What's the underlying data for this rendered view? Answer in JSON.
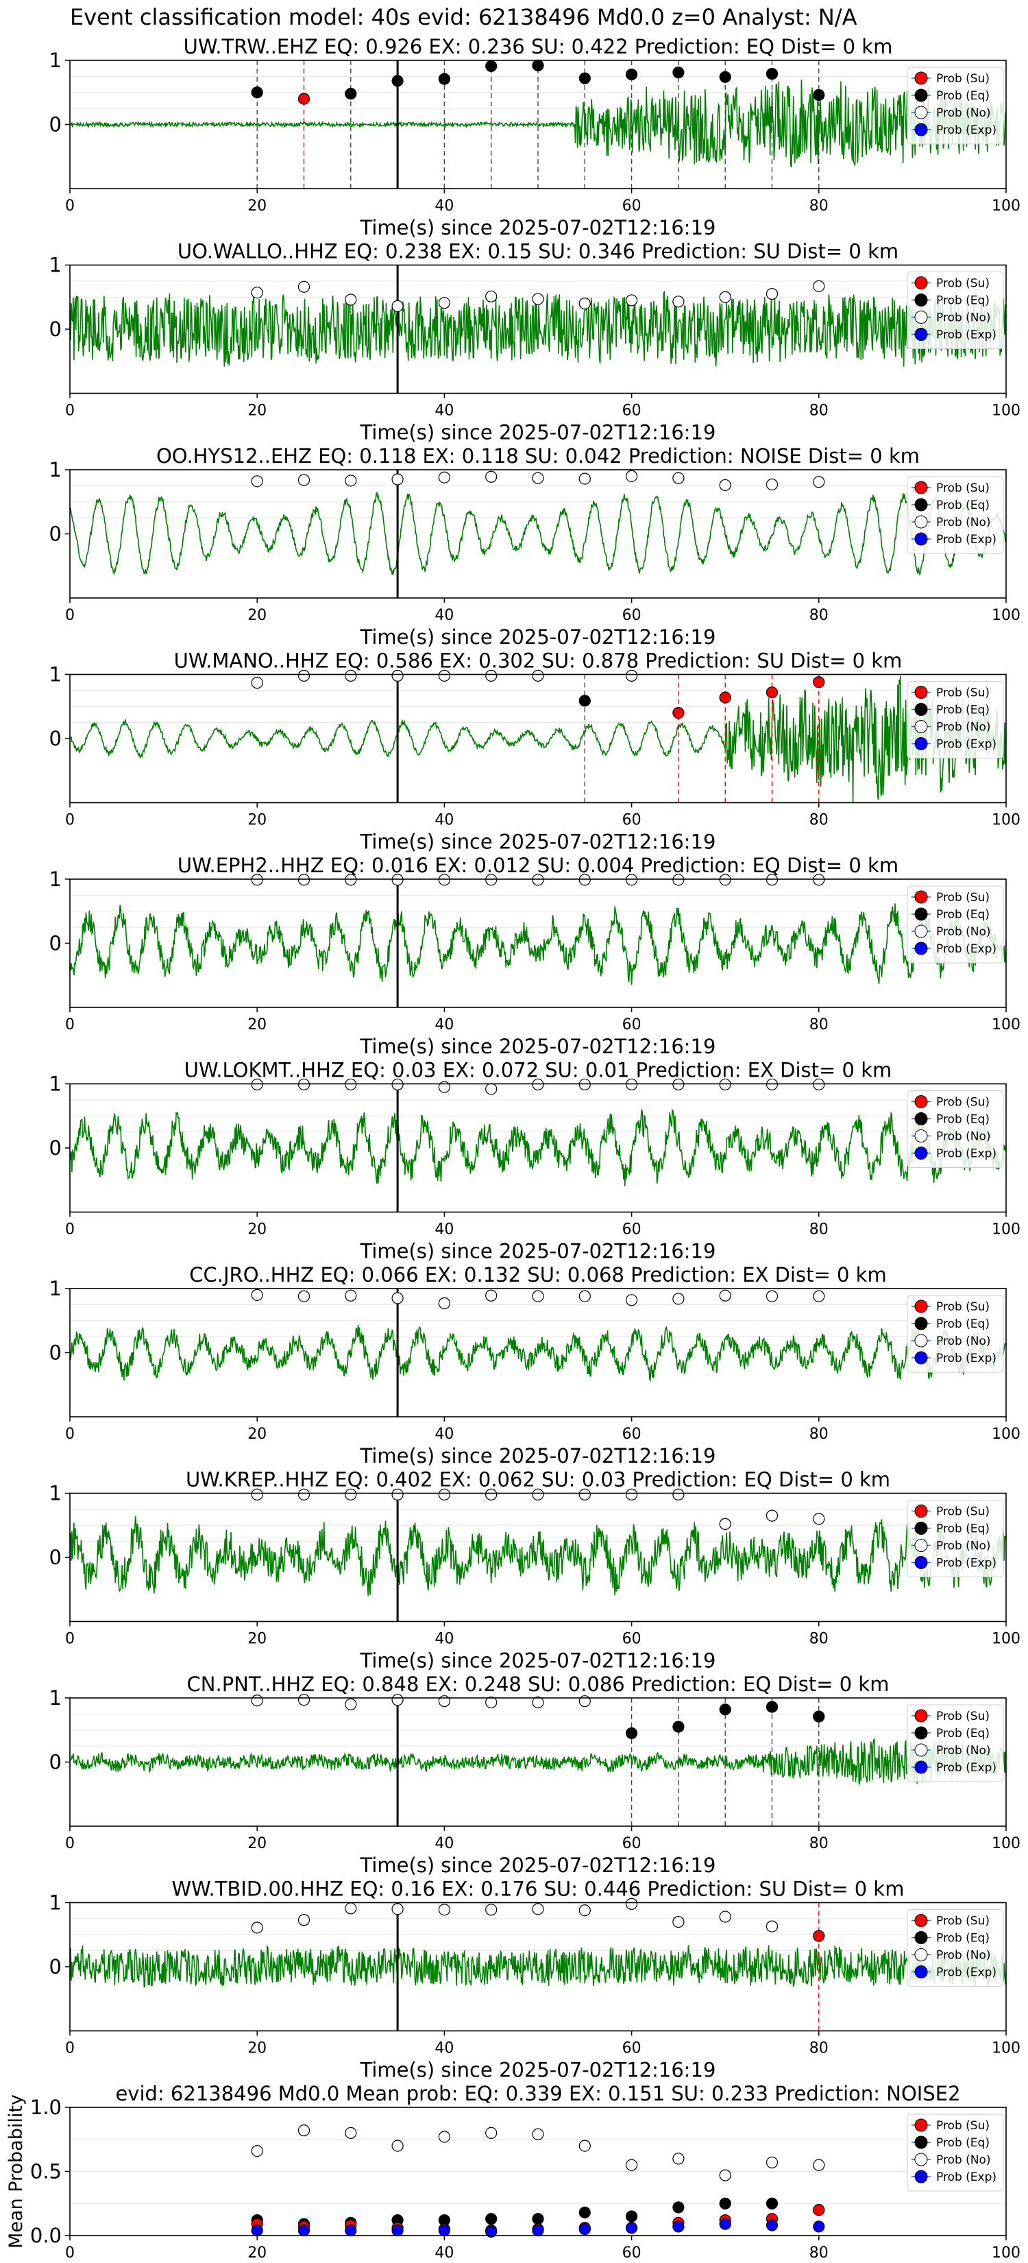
{
  "suptitle": "Event classification model: 40s evid: 62138496 Md0.0 z=0 Analyst: N/A",
  "xlabel": "Time(s) since 2025-07-02T12:16:19",
  "legend": [
    "Prob (Su)",
    "Prob (Eq)",
    "Prob (No)",
    "Prob (Exp)"
  ],
  "colors": {
    "trace": "#008000",
    "su": "#ff0000",
    "eq": "#000000",
    "no": "#ffffff",
    "exp": "#0000ff",
    "pick": "#000000"
  },
  "chart_data": [
    {
      "type": "line",
      "station": "UW.TRW..EHZ",
      "title": "UW.TRW..EHZ   EQ: 0.926  EX: 0.236  SU: 0.422   Prediction: EQ    Dist= 0 km",
      "xlim": [
        0,
        100
      ],
      "ylim": [
        -1,
        1
      ],
      "xticks": [
        0,
        20,
        40,
        60,
        80,
        100
      ],
      "yticks": [
        0,
        1
      ],
      "pick": 35,
      "trace": {
        "amp": 0.03,
        "bursts": [
          [
            54,
            100,
            0.65
          ]
        ],
        "osc": 0
      },
      "markers": [
        {
          "x": 20,
          "y": 0.5,
          "cls": "eq"
        },
        {
          "x": 25,
          "y": 0.4,
          "cls": "su"
        },
        {
          "x": 30,
          "y": 0.48,
          "cls": "eq"
        },
        {
          "x": 35,
          "y": 0.68,
          "cls": "eq"
        },
        {
          "x": 40,
          "y": 0.71,
          "cls": "eq"
        },
        {
          "x": 45,
          "y": 0.91,
          "cls": "eq"
        },
        {
          "x": 50,
          "y": 0.92,
          "cls": "eq"
        },
        {
          "x": 55,
          "y": 0.72,
          "cls": "eq"
        },
        {
          "x": 60,
          "y": 0.78,
          "cls": "eq"
        },
        {
          "x": 65,
          "y": 0.81,
          "cls": "eq"
        },
        {
          "x": 70,
          "y": 0.74,
          "cls": "eq"
        },
        {
          "x": 75,
          "y": 0.79,
          "cls": "eq"
        },
        {
          "x": 80,
          "y": 0.46,
          "cls": "eq"
        }
      ]
    },
    {
      "type": "line",
      "station": "UO.WALLO..HHZ",
      "title": "UO.WALLO..HHZ   EQ: 0.238  EX: 0.15  SU: 0.346   Prediction: SU    Dist= 0 km",
      "xlim": [
        0,
        100
      ],
      "ylim": [
        -1,
        1
      ],
      "xticks": [
        0,
        20,
        40,
        60,
        80,
        100
      ],
      "yticks": [
        0,
        1
      ],
      "pick": 35,
      "trace": {
        "amp": 0.5,
        "bursts": [],
        "osc": 0
      },
      "markers": [
        {
          "x": 20,
          "y": 0.57,
          "cls": "no"
        },
        {
          "x": 25,
          "y": 0.66,
          "cls": "no"
        },
        {
          "x": 30,
          "y": 0.46,
          "cls": "no"
        },
        {
          "x": 35,
          "y": 0.36,
          "cls": "no"
        },
        {
          "x": 40,
          "y": 0.41,
          "cls": "no"
        },
        {
          "x": 45,
          "y": 0.51,
          "cls": "no"
        },
        {
          "x": 50,
          "y": 0.47,
          "cls": "no"
        },
        {
          "x": 55,
          "y": 0.4,
          "cls": "no"
        },
        {
          "x": 60,
          "y": 0.45,
          "cls": "no"
        },
        {
          "x": 65,
          "y": 0.43,
          "cls": "no"
        },
        {
          "x": 70,
          "y": 0.5,
          "cls": "no"
        },
        {
          "x": 75,
          "y": 0.55,
          "cls": "no"
        },
        {
          "x": 80,
          "y": 0.67,
          "cls": "no"
        }
      ]
    },
    {
      "type": "line",
      "station": "OO.HYS12..EHZ",
      "title": "OO.HYS12..EHZ   EQ: 0.118  EX: 0.118  SU: 0.042   Prediction: NOISE    Dist= 0 km",
      "xlim": [
        0,
        100
      ],
      "ylim": [
        -1,
        1
      ],
      "xticks": [
        0,
        20,
        40,
        60,
        80,
        100
      ],
      "yticks": [
        0,
        1
      ],
      "pick": 35,
      "trace": {
        "amp": 0.06,
        "bursts": [],
        "osc": 0.6
      },
      "markers": [
        {
          "x": 20,
          "y": 0.82,
          "cls": "no"
        },
        {
          "x": 25,
          "y": 0.84,
          "cls": "no"
        },
        {
          "x": 30,
          "y": 0.83,
          "cls": "no"
        },
        {
          "x": 35,
          "y": 0.85,
          "cls": "no"
        },
        {
          "x": 40,
          "y": 0.88,
          "cls": "no"
        },
        {
          "x": 45,
          "y": 0.89,
          "cls": "no"
        },
        {
          "x": 50,
          "y": 0.87,
          "cls": "no"
        },
        {
          "x": 55,
          "y": 0.86,
          "cls": "no"
        },
        {
          "x": 60,
          "y": 0.9,
          "cls": "no"
        },
        {
          "x": 65,
          "y": 0.87,
          "cls": "no"
        },
        {
          "x": 70,
          "y": 0.76,
          "cls": "no"
        },
        {
          "x": 75,
          "y": 0.77,
          "cls": "no"
        },
        {
          "x": 80,
          "y": 0.81,
          "cls": "no"
        }
      ]
    },
    {
      "type": "line",
      "station": "UW.MANO..HHZ",
      "title": "UW.MANO..HHZ   EQ: 0.586  EX: 0.302  SU: 0.878   Prediction: SU    Dist= 0 km",
      "xlim": [
        0,
        100
      ],
      "ylim": [
        -1,
        1
      ],
      "xticks": [
        0,
        20,
        40,
        60,
        80,
        100
      ],
      "yticks": [
        0,
        1
      ],
      "pick": 35,
      "trace": {
        "amp": 0.04,
        "bursts": [
          [
            70,
            100,
            0.75
          ]
        ],
        "osc": 0.25
      },
      "markers": [
        {
          "x": 20,
          "y": 0.87,
          "cls": "no"
        },
        {
          "x": 25,
          "y": 0.98,
          "cls": "no"
        },
        {
          "x": 30,
          "y": 0.98,
          "cls": "no"
        },
        {
          "x": 35,
          "y": 0.98,
          "cls": "no"
        },
        {
          "x": 40,
          "y": 0.98,
          "cls": "no"
        },
        {
          "x": 45,
          "y": 0.98,
          "cls": "no"
        },
        {
          "x": 50,
          "y": 0.98,
          "cls": "no"
        },
        {
          "x": 55,
          "y": 0.59,
          "cls": "eq"
        },
        {
          "x": 60,
          "y": 0.98,
          "cls": "no"
        },
        {
          "x": 65,
          "y": 0.4,
          "cls": "su"
        },
        {
          "x": 70,
          "y": 0.64,
          "cls": "su"
        },
        {
          "x": 75,
          "y": 0.72,
          "cls": "su"
        },
        {
          "x": 80,
          "y": 0.88,
          "cls": "su"
        }
      ]
    },
    {
      "type": "line",
      "station": "UW.EPH2..HHZ",
      "title": "UW.EPH2..HHZ   EQ: 0.016  EX: 0.012  SU: 0.004   Prediction: EQ    Dist= 0 km",
      "xlim": [
        0,
        100
      ],
      "ylim": [
        -1,
        1
      ],
      "xticks": [
        0,
        20,
        40,
        60,
        80,
        100
      ],
      "yticks": [
        0,
        1
      ],
      "pick": 35,
      "trace": {
        "amp": 0.18,
        "bursts": [],
        "osc": 0.45
      },
      "markers": [
        {
          "x": 20,
          "y": 0.99,
          "cls": "no"
        },
        {
          "x": 25,
          "y": 0.99,
          "cls": "no"
        },
        {
          "x": 30,
          "y": 0.99,
          "cls": "no"
        },
        {
          "x": 35,
          "y": 0.99,
          "cls": "no"
        },
        {
          "x": 40,
          "y": 0.99,
          "cls": "no"
        },
        {
          "x": 45,
          "y": 0.99,
          "cls": "no"
        },
        {
          "x": 50,
          "y": 0.99,
          "cls": "no"
        },
        {
          "x": 55,
          "y": 0.99,
          "cls": "no"
        },
        {
          "x": 60,
          "y": 0.99,
          "cls": "no"
        },
        {
          "x": 65,
          "y": 0.99,
          "cls": "no"
        },
        {
          "x": 70,
          "y": 0.99,
          "cls": "no"
        },
        {
          "x": 75,
          "y": 0.99,
          "cls": "no"
        },
        {
          "x": 80,
          "y": 0.99,
          "cls": "no"
        }
      ]
    },
    {
      "type": "line",
      "station": "UW.LOKMT..HHZ",
      "title": "UW.LOKMT..HHZ   EQ: 0.03  EX: 0.072  SU: 0.01   Prediction: EX    Dist= 0 km",
      "xlim": [
        0,
        100
      ],
      "ylim": [
        -1,
        1
      ],
      "xticks": [
        0,
        20,
        40,
        60,
        80,
        100
      ],
      "yticks": [
        0,
        1
      ],
      "pick": 35,
      "trace": {
        "amp": 0.2,
        "bursts": [],
        "osc": 0.4
      },
      "markers": [
        {
          "x": 20,
          "y": 0.99,
          "cls": "no"
        },
        {
          "x": 25,
          "y": 0.99,
          "cls": "no"
        },
        {
          "x": 30,
          "y": 0.99,
          "cls": "no"
        },
        {
          "x": 35,
          "y": 0.99,
          "cls": "no"
        },
        {
          "x": 40,
          "y": 0.95,
          "cls": "no"
        },
        {
          "x": 45,
          "y": 0.92,
          "cls": "no"
        },
        {
          "x": 50,
          "y": 0.99,
          "cls": "no"
        },
        {
          "x": 55,
          "y": 0.99,
          "cls": "no"
        },
        {
          "x": 60,
          "y": 0.99,
          "cls": "no"
        },
        {
          "x": 65,
          "y": 0.99,
          "cls": "no"
        },
        {
          "x": 70,
          "y": 0.99,
          "cls": "no"
        },
        {
          "x": 75,
          "y": 0.99,
          "cls": "no"
        },
        {
          "x": 80,
          "y": 0.99,
          "cls": "no"
        }
      ]
    },
    {
      "type": "line",
      "station": "CC.JRO..HHZ",
      "title": "CC.JRO..HHZ   EQ: 0.066  EX: 0.132  SU: 0.068   Prediction: EX    Dist= 0 km",
      "xlim": [
        0,
        100
      ],
      "ylim": [
        -1,
        1
      ],
      "xticks": [
        0,
        20,
        40,
        60,
        80,
        100
      ],
      "yticks": [
        0,
        1
      ],
      "pick": 35,
      "trace": {
        "amp": 0.14,
        "bursts": [],
        "osc": 0.3
      },
      "markers": [
        {
          "x": 20,
          "y": 0.9,
          "cls": "no"
        },
        {
          "x": 25,
          "y": 0.88,
          "cls": "no"
        },
        {
          "x": 30,
          "y": 0.89,
          "cls": "no"
        },
        {
          "x": 35,
          "y": 0.85,
          "cls": "no"
        },
        {
          "x": 40,
          "y": 0.77,
          "cls": "no"
        },
        {
          "x": 45,
          "y": 0.89,
          "cls": "no"
        },
        {
          "x": 50,
          "y": 0.88,
          "cls": "no"
        },
        {
          "x": 55,
          "y": 0.88,
          "cls": "no"
        },
        {
          "x": 60,
          "y": 0.82,
          "cls": "no"
        },
        {
          "x": 65,
          "y": 0.84,
          "cls": "no"
        },
        {
          "x": 70,
          "y": 0.89,
          "cls": "no"
        },
        {
          "x": 75,
          "y": 0.88,
          "cls": "no"
        },
        {
          "x": 80,
          "y": 0.88,
          "cls": "no"
        }
      ]
    },
    {
      "type": "line",
      "station": "UW.KREP..HHZ",
      "title": "UW.KREP..HHZ   EQ: 0.402  EX: 0.062  SU: 0.03   Prediction: EQ    Dist= 0 km",
      "xlim": [
        0,
        100
      ],
      "ylim": [
        -1,
        1
      ],
      "xticks": [
        0,
        20,
        40,
        60,
        80,
        100
      ],
      "yticks": [
        0,
        1
      ],
      "pick": 35,
      "trace": {
        "amp": 0.28,
        "bursts": [],
        "osc": 0.35
      },
      "markers": [
        {
          "x": 20,
          "y": 0.98,
          "cls": "no"
        },
        {
          "x": 25,
          "y": 0.98,
          "cls": "no"
        },
        {
          "x": 30,
          "y": 0.98,
          "cls": "no"
        },
        {
          "x": 35,
          "y": 0.98,
          "cls": "no"
        },
        {
          "x": 40,
          "y": 0.98,
          "cls": "no"
        },
        {
          "x": 45,
          "y": 0.98,
          "cls": "no"
        },
        {
          "x": 50,
          "y": 0.98,
          "cls": "no"
        },
        {
          "x": 55,
          "y": 0.98,
          "cls": "no"
        },
        {
          "x": 60,
          "y": 0.98,
          "cls": "no"
        },
        {
          "x": 65,
          "y": 0.98,
          "cls": "no"
        },
        {
          "x": 70,
          "y": 0.52,
          "cls": "no"
        },
        {
          "x": 75,
          "y": 0.65,
          "cls": "no"
        },
        {
          "x": 80,
          "y": 0.6,
          "cls": "no"
        }
      ]
    },
    {
      "type": "line",
      "station": "CN.PNT..HHZ",
      "title": "CN.PNT..HHZ   EQ: 0.848  EX: 0.248  SU: 0.086   Prediction: EQ    Dist= 0 km",
      "xlim": [
        0,
        100
      ],
      "ylim": [
        -1,
        1
      ],
      "xticks": [
        0,
        20,
        40,
        60,
        80,
        100
      ],
      "yticks": [
        0,
        1
      ],
      "pick": 35,
      "trace": {
        "amp": 0.1,
        "bursts": [
          [
            74,
            100,
            0.35
          ]
        ],
        "osc": 0.05
      },
      "markers": [
        {
          "x": 20,
          "y": 0.96,
          "cls": "no"
        },
        {
          "x": 25,
          "y": 0.97,
          "cls": "no"
        },
        {
          "x": 30,
          "y": 0.9,
          "cls": "no"
        },
        {
          "x": 35,
          "y": 0.97,
          "cls": "no"
        },
        {
          "x": 40,
          "y": 0.95,
          "cls": "no"
        },
        {
          "x": 45,
          "y": 0.93,
          "cls": "no"
        },
        {
          "x": 50,
          "y": 0.93,
          "cls": "no"
        },
        {
          "x": 55,
          "y": 0.95,
          "cls": "no"
        },
        {
          "x": 60,
          "y": 0.45,
          "cls": "eq"
        },
        {
          "x": 65,
          "y": 0.55,
          "cls": "eq"
        },
        {
          "x": 70,
          "y": 0.82,
          "cls": "eq"
        },
        {
          "x": 75,
          "y": 0.86,
          "cls": "eq"
        },
        {
          "x": 80,
          "y": 0.71,
          "cls": "eq"
        }
      ]
    },
    {
      "type": "line",
      "station": "WW.TBID.00.HHZ",
      "title": "WW.TBID.00.HHZ   EQ: 0.16  EX: 0.176  SU: 0.446   Prediction: SU    Dist= 0 km",
      "xlim": [
        0,
        100
      ],
      "ylim": [
        -1,
        1
      ],
      "xticks": [
        0,
        20,
        40,
        60,
        80,
        100
      ],
      "yticks": [
        0,
        1
      ],
      "pick": 35,
      "trace": {
        "amp": 0.28,
        "bursts": [
          [
            8,
            17,
            0.25
          ]
        ],
        "osc": 0
      },
      "markers": [
        {
          "x": 20,
          "y": 0.61,
          "cls": "no"
        },
        {
          "x": 25,
          "y": 0.73,
          "cls": "no"
        },
        {
          "x": 30,
          "y": 0.91,
          "cls": "no"
        },
        {
          "x": 35,
          "y": 0.9,
          "cls": "no"
        },
        {
          "x": 40,
          "y": 0.89,
          "cls": "no"
        },
        {
          "x": 45,
          "y": 0.89,
          "cls": "no"
        },
        {
          "x": 50,
          "y": 0.9,
          "cls": "no"
        },
        {
          "x": 55,
          "y": 0.88,
          "cls": "no"
        },
        {
          "x": 60,
          "y": 0.98,
          "cls": "no"
        },
        {
          "x": 65,
          "y": 0.7,
          "cls": "no"
        },
        {
          "x": 70,
          "y": 0.78,
          "cls": "no"
        },
        {
          "x": 75,
          "y": 0.63,
          "cls": "no"
        },
        {
          "x": 80,
          "y": 0.48,
          "cls": "su"
        }
      ]
    },
    {
      "type": "scatter",
      "title": "evid: 62138496  Md0.0   Mean prob:   EQ: 0.339  EX: 0.151  SU: 0.233   Prediction: NOISE2",
      "ylabel": "Mean Probability",
      "xlim": [
        0,
        100
      ],
      "ylim": [
        0,
        1
      ],
      "xticks": [
        0,
        20,
        40,
        60,
        80,
        100
      ],
      "yticks": [
        0.0,
        0.5,
        1.0
      ],
      "x": [
        20,
        25,
        30,
        35,
        40,
        45,
        50,
        55,
        60,
        65,
        70,
        75,
        80
      ],
      "series": [
        {
          "name": "Prob (No)",
          "cls": "no",
          "values": [
            0.66,
            0.82,
            0.8,
            0.7,
            0.77,
            0.8,
            0.79,
            0.7,
            0.55,
            0.6,
            0.47,
            0.57,
            0.55
          ]
        },
        {
          "name": "Prob (Eq)",
          "cls": "eq",
          "values": [
            0.12,
            0.09,
            0.1,
            0.12,
            0.12,
            0.13,
            0.13,
            0.18,
            0.15,
            0.22,
            0.25,
            0.25,
            0.2
          ]
        },
        {
          "name": "Prob (Su)",
          "cls": "su",
          "values": [
            0.09,
            0.07,
            0.08,
            0.06,
            0.05,
            0.04,
            0.05,
            0.06,
            0.06,
            0.1,
            0.12,
            0.13,
            0.2
          ]
        },
        {
          "name": "Prob (Exp)",
          "cls": "exp",
          "values": [
            0.04,
            0.04,
            0.04,
            0.04,
            0.04,
            0.03,
            0.04,
            0.05,
            0.06,
            0.07,
            0.09,
            0.08,
            0.07
          ]
        }
      ]
    }
  ]
}
